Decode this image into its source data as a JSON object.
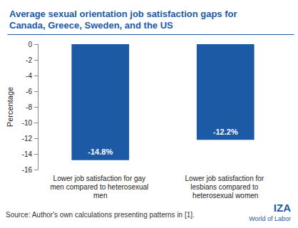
{
  "chart_data": {
    "type": "bar",
    "title": "Average sexual orientation job satisfaction gaps for Canada, Greece, Sweden, and the US",
    "y_label": "Percentage",
    "categories": [
      "Lower job satisfaction for gay men compared to heterosexual men",
      "Lower job satisfaction for lesbians compared to heterosexual women"
    ],
    "values": [
      -14.8,
      -12.2
    ],
    "value_labels": [
      "-14.8%",
      "-12.2%"
    ],
    "data_labels": true,
    "color": "#1c5aa6",
    "ylim": [
      -16,
      0
    ],
    "yticks": [
      -16,
      -14,
      -12,
      -10,
      -8,
      -6,
      -4,
      -2,
      0
    ],
    "grid": false,
    "source": "Source: Author's own calculations presenting patterns in [1].",
    "logo": [
      "IZA",
      "World of Labor"
    ]
  }
}
